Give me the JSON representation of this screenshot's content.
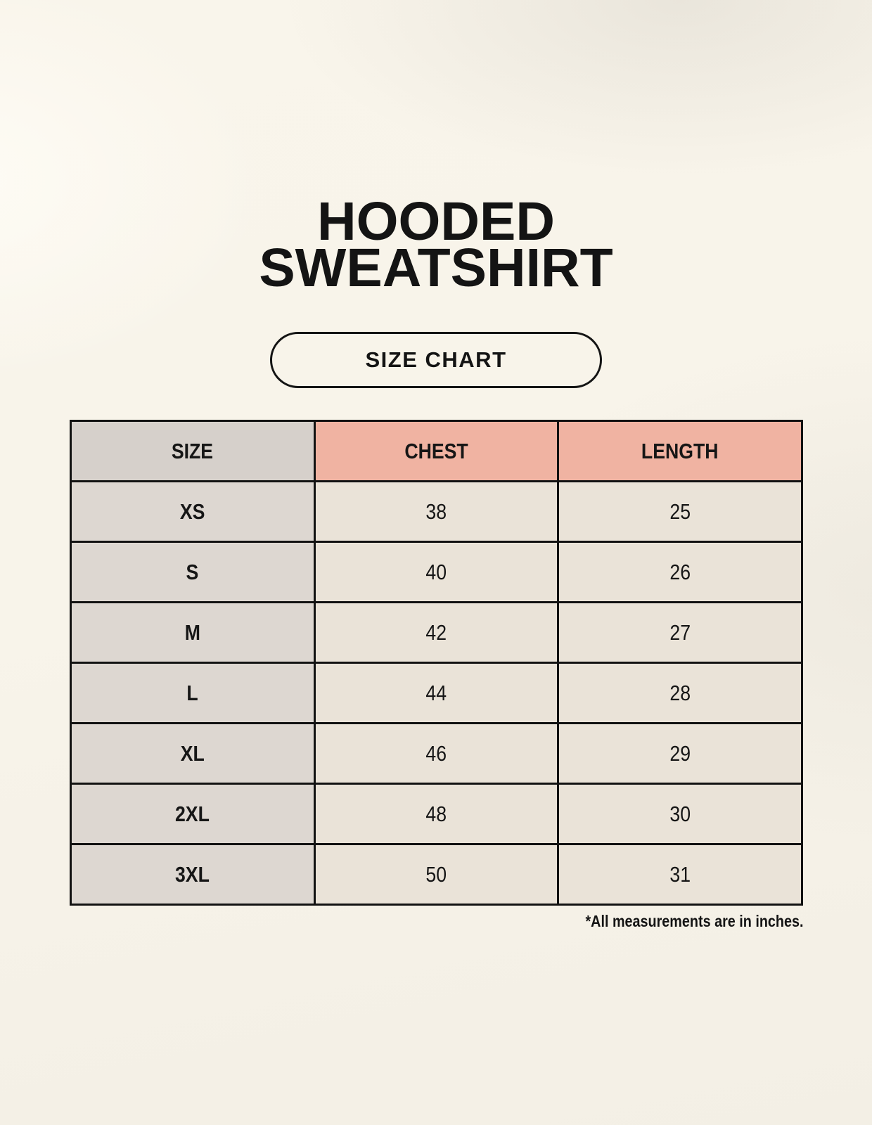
{
  "header": {
    "title_line1": "HOODED",
    "title_line2": "SWEATSHIRT",
    "size_chart_button": "SIZE CHART"
  },
  "size_table": {
    "columns": [
      "SIZE",
      "CHEST",
      "LENGTH"
    ],
    "rows": [
      {
        "size": "XS",
        "chest": "38",
        "length": "25"
      },
      {
        "size": "S",
        "chest": "40",
        "length": "26"
      },
      {
        "size": "M",
        "chest": "42",
        "length": "27"
      },
      {
        "size": "L",
        "chest": "44",
        "length": "28"
      },
      {
        "size": "XL",
        "chest": "46",
        "length": "29"
      },
      {
        "size": "2XL",
        "chest": "48",
        "length": "30"
      },
      {
        "size": "3XL",
        "chest": "50",
        "length": "31"
      }
    ],
    "footnote": "*All measurements are in inches."
  },
  "chart_data": {
    "type": "table",
    "title": "HOODED SWEATSHIRT — SIZE CHART",
    "columns": [
      "SIZE",
      "CHEST",
      "LENGTH"
    ],
    "rows": [
      [
        "XS",
        38,
        25
      ],
      [
        "S",
        40,
        26
      ],
      [
        "M",
        42,
        27
      ],
      [
        "L",
        44,
        28
      ],
      [
        "XL",
        46,
        29
      ],
      [
        "2XL",
        48,
        30
      ],
      [
        "3XL",
        50,
        31
      ]
    ],
    "units": "inches"
  },
  "colors": {
    "page_background": "#f8f4ea",
    "header_accent_pink": "#f0b3a2",
    "header_size_gray": "#d6d0cb",
    "size_column_gray": "#ddd7d1",
    "value_cell_cream": "#eae3d8",
    "border_black": "#121212",
    "text_black": "#141414"
  }
}
